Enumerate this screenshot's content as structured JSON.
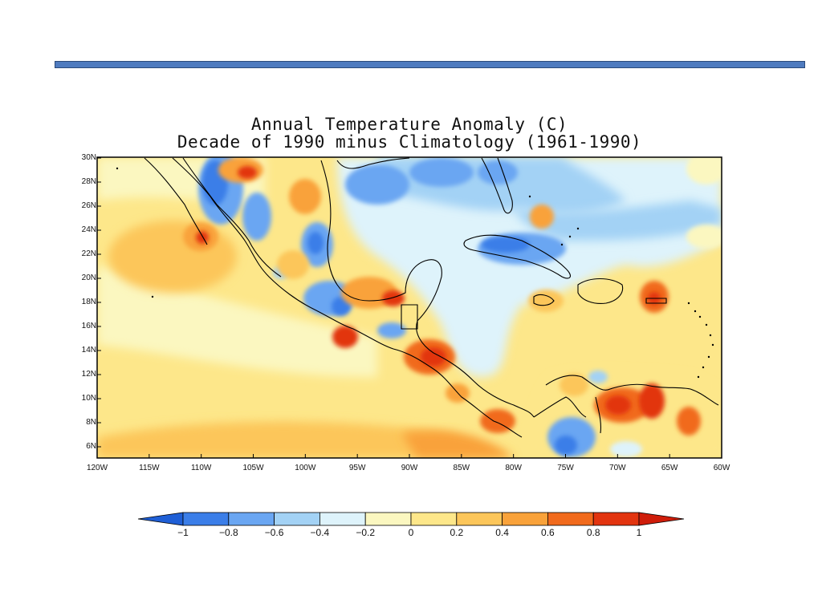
{
  "title_line1": "Annual Temperature Anomaly (C)",
  "title_line2": "Decade of 1990 minus Climatology (1961-1990)",
  "y_ticks": [
    "30N",
    "28N",
    "26N",
    "24N",
    "22N",
    "20N",
    "18N",
    "16N",
    "14N",
    "12N",
    "10N",
    "8N",
    "6N"
  ],
  "x_ticks": [
    "120W",
    "115W",
    "110W",
    "105W",
    "100W",
    "95W",
    "90W",
    "85W",
    "80W",
    "75W",
    "70W",
    "65W",
    "60W"
  ],
  "colorbar": {
    "labels": [
      "-1",
      "-0.8",
      "-0.6",
      "-0.4",
      "-0.2",
      "0",
      "0.2",
      "0.4",
      "0.6",
      "0.8",
      "1"
    ],
    "colors": [
      "#1f5fd6",
      "#3b7ee8",
      "#6aa6f2",
      "#a3d2f5",
      "#def3fb",
      "#fbf7c0",
      "#fde78a",
      "#fcc65a",
      "#f9a23a",
      "#f16a1c",
      "#e2340f",
      "#cf1d0a"
    ]
  },
  "colors": {
    "header_bar": "#4f7bbf",
    "coastline": "#000000"
  }
}
